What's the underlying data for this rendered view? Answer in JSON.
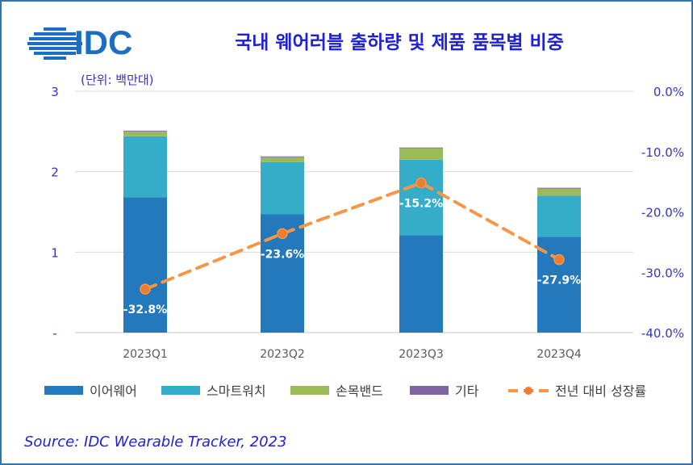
{
  "logo": {
    "text": "IDC"
  },
  "title": "국내 웨어러블 출하량 및 제품 품목별 비중",
  "unit_label": "(단위: 백만대)",
  "source": "Source: IDC Wearable Tracker, 2023",
  "colors": {
    "title": "#1f1fd6",
    "axis_text": "#3333cc",
    "earwear": "#2479bd",
    "smartwatch": "#36adc8",
    "wristband": "#9bbb59",
    "other": "#8064a2",
    "growth": "#f79646",
    "growth_marker": "#ed7d31"
  },
  "chart_data": {
    "type": "bar",
    "stacked": true,
    "categories": [
      "2023Q1",
      "2023Q2",
      "2023Q3",
      "2023Q4"
    ],
    "series": [
      {
        "name": "이어웨어",
        "values": [
          1.68,
          1.47,
          1.21,
          1.19
        ]
      },
      {
        "name": "스마트워치",
        "values": [
          0.76,
          0.65,
          0.94,
          0.51
        ]
      },
      {
        "name": "손목밴드",
        "values": [
          0.06,
          0.06,
          0.14,
          0.09
        ]
      },
      {
        "name": "기타",
        "values": [
          0.01,
          0.01,
          0.01,
          0.01
        ]
      }
    ],
    "line_series": {
      "name": "전년 대비 성장률",
      "axis": "right",
      "values": [
        -32.8,
        -23.6,
        -15.2,
        -27.9
      ],
      "labels": [
        "-32.8%",
        "-23.6%",
        "-15.2%",
        "-27.9%"
      ]
    },
    "ylim": [
      0,
      3
    ],
    "y_ticks": [
      "-",
      "1",
      "2",
      "3"
    ],
    "y2lim": [
      -40,
      0
    ],
    "y2_ticks": [
      "-40.0%",
      "-30.0%",
      "-20.0%",
      "-10.0%",
      "0.0%"
    ],
    "grid": true,
    "legend": "bottom"
  }
}
